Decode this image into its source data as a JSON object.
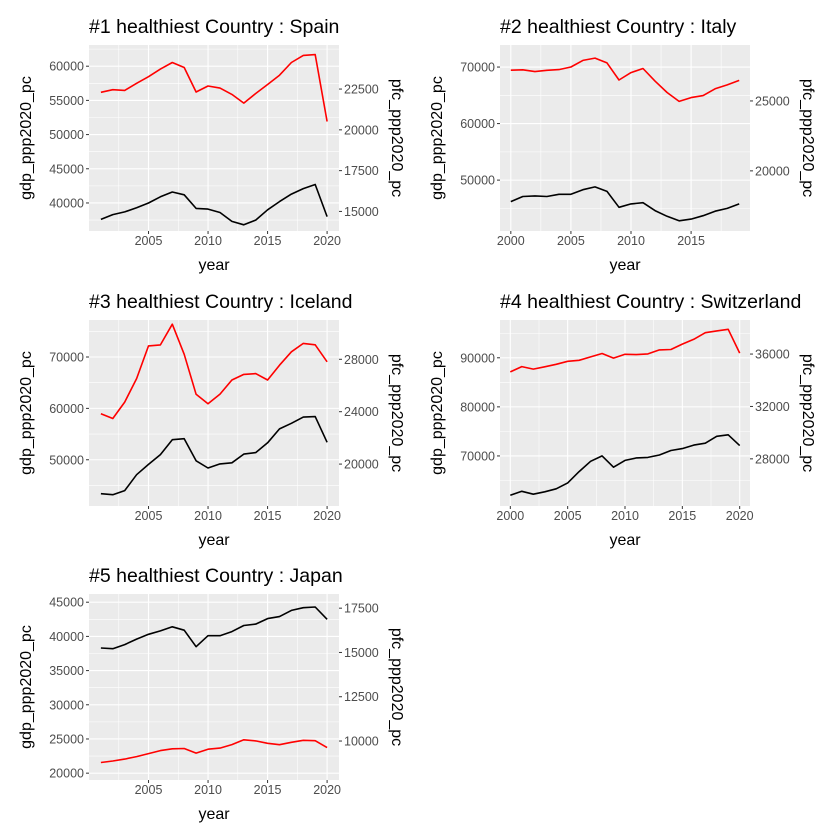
{
  "figure": {
    "axis_left_title": "gdp_ppp2020_pc",
    "axis_right_title": "pfc_ppp2020_pc",
    "axis_x_title": "year"
  },
  "chart_data": [
    {
      "type": "line",
      "title": "#1 healthiest Country : Spain",
      "xlabel": "year",
      "ylabel": "gdp_ppp2020_pc",
      "y2label": "pfc_ppp2020_pc",
      "xlim": [
        2000,
        2021
      ],
      "ylim": [
        35900,
        63100
      ],
      "y2lim": [
        13800,
        25200
      ],
      "x_ticks": [
        2005,
        2010,
        2015,
        2020
      ],
      "y_ticks": [
        40000,
        45000,
        50000,
        55000,
        60000
      ],
      "y2_ticks": [
        15000,
        17500,
        20000,
        22500
      ],
      "grid": true,
      "legend": "none",
      "series": [
        {
          "axis": "left",
          "color": "#000000",
          "x": [
            2001,
            2002,
            2003,
            2004,
            2005,
            2006,
            2007,
            2008,
            2009,
            2010,
            2011,
            2012,
            2013,
            2014,
            2015,
            2016,
            2017,
            2018,
            2019,
            2020
          ],
          "values": [
            37600,
            38300,
            38700,
            39300,
            40000,
            40900,
            41600,
            41200,
            39200,
            39100,
            38600,
            37300,
            36800,
            37500,
            39000,
            40200,
            41300,
            42100,
            42700,
            38000
          ]
        },
        {
          "axis": "right",
          "color": "#ff0000",
          "x": [
            2001,
            2002,
            2003,
            2004,
            2005,
            2006,
            2007,
            2008,
            2009,
            2010,
            2011,
            2012,
            2013,
            2014,
            2015,
            2016,
            2017,
            2018,
            2019,
            2020
          ],
          "values": [
            22300,
            22460,
            22420,
            22850,
            23260,
            23720,
            24130,
            23820,
            22320,
            22690,
            22560,
            22170,
            21640,
            22230,
            22780,
            23350,
            24130,
            24560,
            24610,
            20510
          ]
        }
      ]
    },
    {
      "type": "line",
      "title": "#2 healthiest Country : Italy",
      "xlabel": "year",
      "ylabel": "gdp_ppp2020_pc",
      "y2label": "pfc_ppp2020_pc",
      "xlim": [
        1999.1,
        2019.9
      ],
      "ylim": [
        41000,
        73900
      ],
      "y2lim": [
        15700,
        29000
      ],
      "x_ticks": [
        2000,
        2005,
        2010,
        2015
      ],
      "y_ticks": [
        50000,
        60000,
        70000
      ],
      "y2_ticks": [
        20000,
        25000
      ],
      "grid": true,
      "legend": "none",
      "series": [
        {
          "axis": "left",
          "color": "#000000",
          "x": [
            2000,
            2001,
            2002,
            2003,
            2004,
            2005,
            2006,
            2007,
            2008,
            2009,
            2010,
            2011,
            2012,
            2013,
            2014,
            2015,
            2016,
            2017,
            2018,
            2019
          ],
          "values": [
            46200,
            47100,
            47200,
            47100,
            47500,
            47500,
            48300,
            48800,
            48000,
            45200,
            45800,
            46000,
            44600,
            43600,
            42800,
            43100,
            43700,
            44500,
            45000,
            45800
          ]
        },
        {
          "axis": "right",
          "color": "#ff0000",
          "x": [
            2000,
            2001,
            2002,
            2003,
            2004,
            2005,
            2006,
            2007,
            2008,
            2009,
            2010,
            2011,
            2012,
            2013,
            2014,
            2015,
            2016,
            2017,
            2018,
            2019
          ],
          "values": [
            27200,
            27230,
            27100,
            27190,
            27240,
            27430,
            27900,
            28060,
            27720,
            26500,
            27030,
            27320,
            26420,
            25600,
            24970,
            25240,
            25380,
            25870,
            26150,
            26470
          ]
        }
      ]
    },
    {
      "type": "line",
      "title": "#3 healthiest Country : Iceland",
      "xlabel": "year",
      "ylabel": "gdp_ppp2020_pc",
      "y2label": "pfc_ppp2020_pc",
      "xlim": [
        2000,
        2021
      ],
      "ylim": [
        41000,
        77200
      ],
      "y2lim": [
        16800,
        31000
      ],
      "x_ticks": [
        2005,
        2010,
        2015,
        2020
      ],
      "y_ticks": [
        50000,
        60000,
        70000
      ],
      "y2_ticks": [
        20000,
        24000,
        28000
      ],
      "grid": true,
      "legend": "none",
      "series": [
        {
          "axis": "left",
          "color": "#000000",
          "x": [
            2001,
            2002,
            2003,
            2004,
            2005,
            2006,
            2007,
            2008,
            2009,
            2010,
            2011,
            2012,
            2013,
            2014,
            2015,
            2016,
            2017,
            2018,
            2019,
            2020
          ],
          "values": [
            43400,
            43200,
            44000,
            47100,
            49100,
            51000,
            53900,
            54100,
            49800,
            48400,
            49200,
            49400,
            51100,
            51400,
            53300,
            56000,
            57100,
            58300,
            58400,
            53400
          ]
        },
        {
          "axis": "right",
          "color": "#ff0000",
          "x": [
            2001,
            2002,
            2003,
            2004,
            2005,
            2006,
            2007,
            2008,
            2009,
            2010,
            2011,
            2012,
            2013,
            2014,
            2015,
            2016,
            2017,
            2018,
            2019,
            2020
          ],
          "values": [
            23850,
            23480,
            24730,
            26530,
            29020,
            29100,
            30680,
            28380,
            25330,
            24600,
            25340,
            26420,
            26850,
            26910,
            26420,
            27550,
            28570,
            29210,
            29110,
            27810
          ]
        }
      ]
    },
    {
      "type": "line",
      "title": "#4 healthiest Country : Switzerland",
      "xlabel": "year",
      "ylabel": "gdp_ppp2020_pc",
      "y2label": "pfc_ppp2020_pc",
      "xlim": [
        1999.1,
        2020.9
      ],
      "ylim": [
        59800,
        97700
      ],
      "y2lim": [
        24400,
        38600
      ],
      "x_ticks": [
        2000,
        2005,
        2010,
        2015,
        2020
      ],
      "y_ticks": [
        70000,
        80000,
        90000
      ],
      "y2_ticks": [
        28000,
        32000,
        36000
      ],
      "grid": true,
      "legend": "none",
      "series": [
        {
          "axis": "left",
          "color": "#000000",
          "x": [
            2000,
            2001,
            2002,
            2003,
            2004,
            2005,
            2006,
            2007,
            2008,
            2009,
            2010,
            2011,
            2012,
            2013,
            2014,
            2015,
            2016,
            2017,
            2018,
            2019,
            2020
          ],
          "values": [
            62000,
            62800,
            62200,
            62700,
            63300,
            64500,
            66800,
            68900,
            70000,
            67700,
            69100,
            69600,
            69700,
            70200,
            71100,
            71500,
            72200,
            72600,
            74000,
            74300,
            72100
          ]
        },
        {
          "axis": "right",
          "color": "#ff0000",
          "x": [
            2000,
            2001,
            2002,
            2003,
            2004,
            2005,
            2006,
            2007,
            2008,
            2009,
            2010,
            2011,
            2012,
            2013,
            2014,
            2015,
            2016,
            2017,
            2018,
            2019,
            2020
          ],
          "values": [
            34640,
            35040,
            34850,
            35030,
            35220,
            35450,
            35520,
            35780,
            36040,
            35690,
            35980,
            35960,
            36010,
            36320,
            36350,
            36760,
            37130,
            37630,
            37770,
            37890,
            36070
          ]
        }
      ]
    },
    {
      "type": "line",
      "title": "#5 healthiest Country : Japan",
      "xlabel": "year",
      "ylabel": "gdp_ppp2020_pc",
      "y2label": "pfc_ppp2020_pc",
      "xlim": [
        2000,
        2021
      ],
      "ylim": [
        19000,
        46200
      ],
      "y2lim": [
        7800,
        18300
      ],
      "x_ticks": [
        2005,
        2010,
        2015,
        2020
      ],
      "y_ticks": [
        20000,
        25000,
        30000,
        35000,
        40000,
        45000
      ],
      "y2_ticks": [
        10000,
        12500,
        15000,
        17500
      ],
      "grid": true,
      "legend": "none",
      "series": [
        {
          "axis": "left",
          "color": "#000000",
          "x": [
            2001,
            2002,
            2003,
            2004,
            2005,
            2006,
            2007,
            2008,
            2009,
            2010,
            2011,
            2012,
            2013,
            2014,
            2015,
            2016,
            2017,
            2018,
            2019,
            2020
          ],
          "values": [
            38300,
            38200,
            38800,
            39600,
            40300,
            40800,
            41400,
            40900,
            38500,
            40100,
            40100,
            40700,
            41600,
            41800,
            42600,
            42900,
            43800,
            44200,
            44300,
            42500
          ]
        },
        {
          "axis": "right",
          "color": "#ff0000",
          "x": [
            2001,
            2002,
            2003,
            2004,
            2005,
            2006,
            2007,
            2008,
            2009,
            2010,
            2011,
            2012,
            2013,
            2014,
            2015,
            2016,
            2017,
            2018,
            2019,
            2020
          ],
          "values": [
            8790,
            8870,
            8980,
            9120,
            9290,
            9460,
            9560,
            9580,
            9320,
            9540,
            9600,
            9800,
            10070,
            10010,
            9870,
            9790,
            9930,
            10040,
            10020,
            9630
          ]
        }
      ]
    }
  ]
}
